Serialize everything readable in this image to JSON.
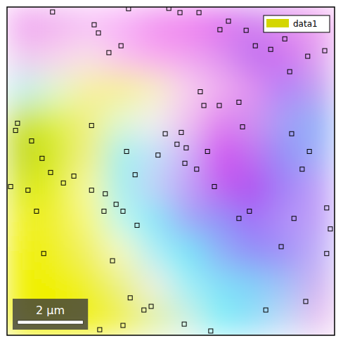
{
  "chart_data": {
    "type": "map",
    "tick_labels": false,
    "xlim": [
      0,
      10
    ],
    "ylim": [
      0,
      10
    ],
    "legend": "upper right",
    "series": [
      {
        "name": "data1",
        "color": "#d4d600"
      }
    ],
    "scale_bar": {
      "value": 2,
      "label": "2 μm"
    },
    "cells": [
      [
        "#f0a0f0",
        "#f0b0f0",
        "#f8c0f8",
        "#f8b0f8",
        "#f090f0",
        "#f080f0",
        "#e070f0",
        "#d080f0",
        "#e090f0",
        "#f0a0f0"
      ],
      [
        "#f0c8f0",
        "#f8d0f0",
        "#f8e0e8",
        "#f8c0f0",
        "#f8a8f0",
        "#f0a0f0",
        "#e090f0",
        "#c070f0",
        "#d070f0",
        "#e0a0f0"
      ],
      [
        "#c0f0f0",
        "#e0f8d0",
        "#f8f0a0",
        "#f8f090",
        "#f8f0c0",
        "#f8d0f0",
        "#f0b0f0",
        "#e090f0",
        "#b080f8",
        "#c0a0f0"
      ],
      [
        "#c8e020",
        "#e0f040",
        "#f0f080",
        "#e0f8d0",
        "#f0f0f0",
        "#f0c0f0",
        "#e080f0",
        "#d090f0",
        "#a0a0f8",
        "#90b0f8"
      ],
      [
        "#c0d820",
        "#d8e820",
        "#f0f080",
        "#a0f0f0",
        "#c0e0f8",
        "#d0b0f8",
        "#d050f0",
        "#c070f0",
        "#9090f8",
        "#a0b0f8"
      ],
      [
        "#d8e820",
        "#e8f020",
        "#f8f8a0",
        "#a0f0f0",
        "#c0d0f8",
        "#c0a0f8",
        "#c060f0",
        "#b050f0",
        "#a080f8",
        "#c0a0f8"
      ],
      [
        "#f0f020",
        "#f0f030",
        "#f8f880",
        "#c0f8f0",
        "#80e8f8",
        "#a0a8f8",
        "#9090f8",
        "#a070f8",
        "#b090f8",
        "#c0a0f8"
      ],
      [
        "#f0f000",
        "#f0f020",
        "#f0f060",
        "#f8f8c0",
        "#b0f0f8",
        "#70e8f8",
        "#90b0f8",
        "#9090f8",
        "#a090f8",
        "#c0b0f8"
      ],
      [
        "#f0f000",
        "#f0f000",
        "#f0f020",
        "#e8f080",
        "#f0f0e0",
        "#a0f0f8",
        "#80e0f8",
        "#80d0f8",
        "#a0c0f8",
        "#d0b0f0"
      ],
      [
        "#f0f000",
        "#f0f000",
        "#f0f010",
        "#f0f040",
        "#e0f0a0",
        "#d0f0e0",
        "#80f0f8",
        "#90e0f8",
        "#c0d8f8",
        "#e8c0f0"
      ]
    ],
    "boundaries": {
      "marker": "square",
      "x": [
        1.39,
        2.66,
        2.79,
        3.11,
        3.48,
        3.71,
        4.94,
        5.28,
        5.86,
        6.5,
        6.76,
        7.3,
        7.58,
        8.05,
        8.48,
        8.63,
        9.18,
        9.7,
        5.9,
        6.01,
        6.48,
        7.08,
        7.19,
        5.32,
        5.19,
        5.47,
        5.79,
        6.12,
        5.43,
        4.83,
        4.61,
        3.65,
        3.91,
        2.58,
        0.32,
        0.26,
        0.75,
        1.07,
        1.33,
        0.64,
        0.11,
        1.72,
        2.04,
        2.58,
        3.0,
        3.33,
        3.54,
        3.97,
        2.96,
        6.33,
        7.08,
        7.4,
        8.37,
        8.76,
        9.01,
        9.23,
        8.69,
        9.76,
        9.87,
        1.12,
        0.9,
        3.22,
        3.76,
        4.18,
        4.4,
        5.41,
        2.83,
        3.54,
        7.9,
        9.12,
        9.76,
        6.22
      ],
      "y": [
        0.15,
        0.54,
        0.79,
        1.39,
        1.18,
        0.05,
        0.04,
        0.17,
        0.17,
        0.69,
        0.43,
        0.71,
        1.18,
        1.29,
        0.97,
        1.97,
        1.5,
        1.33,
        2.58,
        3.0,
        3.0,
        2.9,
        3.65,
        3.82,
        4.18,
        4.29,
        4.94,
        4.4,
        4.76,
        3.86,
        4.51,
        4.4,
        5.11,
        3.61,
        3.54,
        3.76,
        4.08,
        4.61,
        5.04,
        5.58,
        5.47,
        5.36,
        5.15,
        5.58,
        5.69,
        6.01,
        6.22,
        6.65,
        6.22,
        5.47,
        6.44,
        6.22,
        7.3,
        6.44,
        4.94,
        4.4,
        3.86,
        6.12,
        6.76,
        7.51,
        6.22,
        7.73,
        8.86,
        9.23,
        9.12,
        9.66,
        9.83,
        9.7,
        9.23,
        8.97,
        7.51,
        9.87
      ]
    }
  }
}
